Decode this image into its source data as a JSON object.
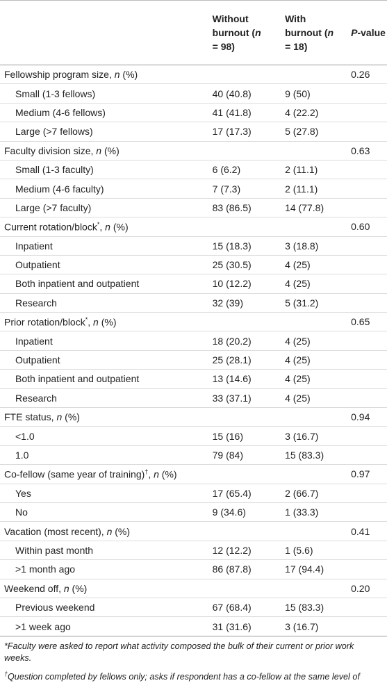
{
  "header": {
    "columns": [
      [
        {
          "text": "Without burnout ("
        },
        {
          "text": "n",
          "italic": true
        },
        {
          "text": " = 98)"
        }
      ],
      [
        {
          "text": "With burnout ("
        },
        {
          "text": "n",
          "italic": true
        },
        {
          "text": " = 18)"
        }
      ],
      [
        {
          "text": "P",
          "italic": true
        },
        {
          "text": "-value"
        }
      ]
    ]
  },
  "table": {
    "sections": [
      {
        "label": [
          {
            "text": "Fellowship program size, "
          },
          {
            "text": "n",
            "italic": true
          },
          {
            "text": " (%)"
          }
        ],
        "p_value": "0.26",
        "rows": [
          [
            "Small (1-3 fellows)",
            "40 (40.8)",
            "9 (50)"
          ],
          [
            "Medium (4-6 fellows)",
            "41 (41.8)",
            "4 (22.2)"
          ],
          [
            "Large (>7 fellows)",
            "17 (17.3)",
            "5 (27.8)"
          ]
        ]
      },
      {
        "label": [
          {
            "text": "Faculty division size, "
          },
          {
            "text": "n",
            "italic": true
          },
          {
            "text": " (%)"
          }
        ],
        "p_value": "0.63",
        "rows": [
          [
            "Small (1-3 faculty)",
            "6 (6.2)",
            "2 (11.1)"
          ],
          [
            "Medium (4-6 faculty)",
            "7 (7.3)",
            "2 (11.1)"
          ],
          [
            "Large (>7 faculty)",
            "83 (86.5)",
            "14 (77.8)"
          ]
        ]
      },
      {
        "label": [
          {
            "text": "Current rotation/block"
          },
          {
            "text": "*",
            "sup": true
          },
          {
            "text": ", "
          },
          {
            "text": "n",
            "italic": true
          },
          {
            "text": " (%)"
          }
        ],
        "p_value": "0.60",
        "rows": [
          [
            "Inpatient",
            "15 (18.3)",
            "3 (18.8)"
          ],
          [
            "Outpatient",
            "25 (30.5)",
            "4 (25)"
          ],
          [
            "Both inpatient and outpatient",
            "10 (12.2)",
            "4 (25)"
          ],
          [
            "Research",
            "32 (39)",
            "5 (31.2)"
          ]
        ]
      },
      {
        "label": [
          {
            "text": "Prior rotation/block"
          },
          {
            "text": "*",
            "sup": true
          },
          {
            "text": ", "
          },
          {
            "text": "n",
            "italic": true
          },
          {
            "text": " (%)"
          }
        ],
        "p_value": "0.65",
        "rows": [
          [
            "Inpatient",
            "18 (20.2)",
            "4 (25)"
          ],
          [
            "Outpatient",
            "25 (28.1)",
            "4 (25)"
          ],
          [
            "Both inpatient and outpatient",
            "13 (14.6)",
            "4 (25)"
          ],
          [
            "Research",
            "33 (37.1)",
            "4 (25)"
          ]
        ]
      },
      {
        "label": [
          {
            "text": "FTE status, "
          },
          {
            "text": "n",
            "italic": true
          },
          {
            "text": " (%)"
          }
        ],
        "p_value": "0.94",
        "rows": [
          [
            "<1.0",
            "15 (16)",
            "3 (16.7)"
          ],
          [
            "1.0",
            "79 (84)",
            "15 (83.3)"
          ]
        ]
      },
      {
        "label": [
          {
            "text": "Co-fellow (same year of training)"
          },
          {
            "text": "†",
            "sup": true
          },
          {
            "text": ", "
          },
          {
            "text": "n",
            "italic": true
          },
          {
            "text": " (%)"
          }
        ],
        "p_value": "0.97",
        "rows": [
          [
            "Yes",
            "17 (65.4)",
            "2 (66.7)"
          ],
          [
            "No",
            "9 (34.6)",
            "1 (33.3)"
          ]
        ]
      },
      {
        "label": [
          {
            "text": "Vacation (most recent), "
          },
          {
            "text": "n",
            "italic": true
          },
          {
            "text": " (%)"
          }
        ],
        "p_value": "0.41",
        "rows": [
          [
            "Within past month",
            "12 (12.2)",
            "1 (5.6)"
          ],
          [
            ">1 month ago",
            "86 (87.8)",
            "17 (94.4)"
          ]
        ]
      },
      {
        "label": [
          {
            "text": "Weekend off, "
          },
          {
            "text": "n",
            "italic": true
          },
          {
            "text": " (%)"
          }
        ],
        "p_value": "0.20",
        "rows": [
          [
            "Previous weekend",
            "67 (68.4)",
            "15 (83.3)"
          ],
          [
            ">1 week ago",
            "31 (31.6)",
            "3 (16.7)"
          ]
        ]
      }
    ]
  },
  "footnotes": [
    [
      {
        "text": "*Faculty were asked to report what activity composed the bulk of their current or prior work weeks."
      }
    ],
    [
      {
        "text": "†",
        "sup": true
      },
      {
        "text": "Question completed by fellows only; asks if respondent has a co-fellow at the same level of training."
      }
    ]
  ]
}
